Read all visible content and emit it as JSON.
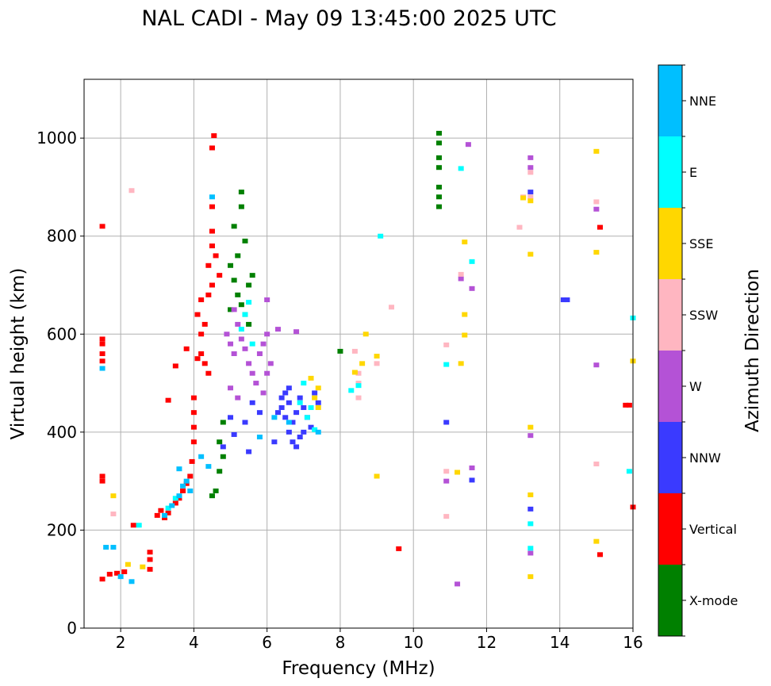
{
  "chart_data": {
    "type": "scatter",
    "title": "NAL CADI - May 09 13:45:00 2025 UTC",
    "xlabel": "Frequency (MHz)",
    "ylabel": "Virtual height (km)",
    "xlim": [
      1,
      16
    ],
    "ylim": [
      0,
      1120
    ],
    "xticks": [
      2,
      4,
      6,
      8,
      10,
      12,
      14,
      16
    ],
    "yticks": [
      0,
      200,
      400,
      600,
      800,
      1000
    ],
    "grid": true,
    "colorbar": {
      "label": "Azimuth Direction",
      "categories": [
        {
          "name": "X-mode",
          "color": "#008000"
        },
        {
          "name": "Vertical",
          "color": "#ff0000"
        },
        {
          "name": "NNW",
          "color": "#3a3aff"
        },
        {
          "name": "W",
          "color": "#b452d6"
        },
        {
          "name": "SSW",
          "color": "#ffb6c1"
        },
        {
          "name": "SSE",
          "color": "#ffd700"
        },
        {
          "name": "E",
          "color": "#00ffff"
        },
        {
          "name": "NNE",
          "color": "#00bfff"
        }
      ]
    },
    "series": [
      {
        "name": "X-mode",
        "color": "#008000",
        "points": [
          [
            10.7,
            1010
          ],
          [
            10.7,
            990
          ],
          [
            10.7,
            960
          ],
          [
            10.7,
            940
          ],
          [
            10.7,
            900
          ],
          [
            10.7,
            880
          ],
          [
            10.7,
            860
          ],
          [
            4.6,
            280
          ],
          [
            4.7,
            320
          ],
          [
            4.8,
            350
          ],
          [
            4.5,
            270
          ],
          [
            4.7,
            380
          ],
          [
            4.8,
            420
          ],
          [
            5.0,
            740
          ],
          [
            5.1,
            710
          ],
          [
            5.2,
            680
          ],
          [
            5.3,
            660
          ],
          [
            5.4,
            640
          ],
          [
            5.2,
            760
          ],
          [
            5.5,
            700
          ],
          [
            5.1,
            820
          ],
          [
            5.3,
            860
          ],
          [
            5.4,
            790
          ],
          [
            5.6,
            720
          ],
          [
            5.3,
            890
          ],
          [
            5.0,
            650
          ],
          [
            5.5,
            620
          ],
          [
            8.0,
            565
          ]
        ]
      },
      {
        "name": "Vertical",
        "color": "#ff0000",
        "points": [
          [
            1.5,
            590
          ],
          [
            1.5,
            580
          ],
          [
            1.5,
            560
          ],
          [
            1.5,
            545
          ],
          [
            1.5,
            310
          ],
          [
            1.5,
            300
          ],
          [
            1.5,
            820
          ],
          [
            1.5,
            100
          ],
          [
            1.7,
            110
          ],
          [
            1.9,
            112
          ],
          [
            2.1,
            115
          ],
          [
            2.8,
            120
          ],
          [
            2.8,
            140
          ],
          [
            2.8,
            155
          ],
          [
            2.35,
            210
          ],
          [
            3.0,
            230
          ],
          [
            3.1,
            240
          ],
          [
            3.2,
            225
          ],
          [
            3.3,
            235
          ],
          [
            3.5,
            255
          ],
          [
            3.6,
            265
          ],
          [
            3.7,
            280
          ],
          [
            3.8,
            295
          ],
          [
            3.9,
            310
          ],
          [
            3.95,
            340
          ],
          [
            4.0,
            380
          ],
          [
            4.0,
            410
          ],
          [
            4.0,
            440
          ],
          [
            4.0,
            470
          ],
          [
            3.5,
            535
          ],
          [
            3.8,
            570
          ],
          [
            4.1,
            550
          ],
          [
            4.2,
            560
          ],
          [
            4.3,
            540
          ],
          [
            4.4,
            520
          ],
          [
            4.2,
            600
          ],
          [
            4.3,
            620
          ],
          [
            4.1,
            640
          ],
          [
            4.2,
            670
          ],
          [
            4.4,
            680
          ],
          [
            4.5,
            700
          ],
          [
            4.4,
            740
          ],
          [
            4.5,
            780
          ],
          [
            4.5,
            810
          ],
          [
            4.5,
            860
          ],
          [
            4.5,
            980
          ],
          [
            4.55,
            1005
          ],
          [
            3.3,
            465
          ],
          [
            4.6,
            760
          ],
          [
            4.7,
            720
          ],
          [
            9.6,
            162
          ],
          [
            15.8,
            455
          ],
          [
            15.9,
            455
          ],
          [
            15.1,
            818
          ],
          [
            15.1,
            150
          ],
          [
            16.0,
            247
          ]
        ]
      },
      {
        "name": "NNW",
        "color": "#3a3aff",
        "points": [
          [
            6.3,
            440
          ],
          [
            6.4,
            450
          ],
          [
            6.5,
            430
          ],
          [
            6.6,
            460
          ],
          [
            6.7,
            420
          ],
          [
            6.8,
            440
          ],
          [
            6.9,
            470
          ],
          [
            7.0,
            450
          ],
          [
            7.1,
            430
          ],
          [
            7.2,
            410
          ],
          [
            6.6,
            400
          ],
          [
            6.7,
            380
          ],
          [
            6.8,
            370
          ],
          [
            6.9,
            390
          ],
          [
            7.0,
            400
          ],
          [
            6.5,
            480
          ],
          [
            6.6,
            490
          ],
          [
            6.4,
            470
          ],
          [
            7.3,
            480
          ],
          [
            7.4,
            460
          ],
          [
            6.2,
            380
          ],
          [
            5.6,
            460
          ],
          [
            5.8,
            440
          ],
          [
            5.4,
            420
          ],
          [
            5.0,
            430
          ],
          [
            5.1,
            395
          ],
          [
            4.8,
            370
          ],
          [
            5.5,
            360
          ],
          [
            14.1,
            670
          ],
          [
            14.2,
            670
          ],
          [
            13.2,
            243
          ],
          [
            13.2,
            890
          ],
          [
            10.9,
            420
          ],
          [
            11.6,
            302
          ]
        ]
      },
      {
        "name": "W",
        "color": "#b452d6",
        "points": [
          [
            4.9,
            600
          ],
          [
            5.0,
            580
          ],
          [
            5.1,
            560
          ],
          [
            5.2,
            620
          ],
          [
            5.3,
            590
          ],
          [
            5.4,
            570
          ],
          [
            5.5,
            540
          ],
          [
            5.6,
            520
          ],
          [
            5.8,
            560
          ],
          [
            5.9,
            580
          ],
          [
            6.0,
            600
          ],
          [
            6.1,
            540
          ],
          [
            6.0,
            520
          ],
          [
            5.7,
            500
          ],
          [
            5.9,
            480
          ],
          [
            5.2,
            470
          ],
          [
            5.0,
            490
          ],
          [
            6.0,
            670
          ],
          [
            6.3,
            610
          ],
          [
            6.8,
            605
          ],
          [
            5.1,
            650
          ],
          [
            13.2,
            960
          ],
          [
            13.2,
            940
          ],
          [
            13.2,
            393
          ],
          [
            13.2,
            153
          ],
          [
            15.0,
            855
          ],
          [
            15.0,
            537
          ],
          [
            11.5,
            987
          ],
          [
            11.6,
            693
          ],
          [
            11.6,
            327
          ],
          [
            10.9,
            300
          ],
          [
            11.2,
            90
          ],
          [
            11.3,
            713
          ]
        ]
      },
      {
        "name": "SSW",
        "color": "#ffb6c1",
        "points": [
          [
            2.3,
            893
          ],
          [
            1.8,
            233
          ],
          [
            8.5,
            520
          ],
          [
            8.5,
            500
          ],
          [
            8.5,
            470
          ],
          [
            8.4,
            565
          ],
          [
            9.0,
            540
          ],
          [
            9.4,
            655
          ],
          [
            10.9,
            578
          ],
          [
            10.9,
            320
          ],
          [
            10.9,
            228
          ],
          [
            11.3,
            722
          ],
          [
            12.9,
            818
          ],
          [
            13.2,
            930
          ],
          [
            13.2,
            880
          ],
          [
            15.0,
            870
          ],
          [
            15.0,
            335
          ],
          [
            13.0,
            880
          ]
        ]
      },
      {
        "name": "SSE",
        "color": "#ffd700",
        "points": [
          [
            1.8,
            270
          ],
          [
            2.2,
            130
          ],
          [
            2.6,
            125
          ],
          [
            7.3,
            470
          ],
          [
            7.4,
            450
          ],
          [
            7.4,
            490
          ],
          [
            7.2,
            510
          ],
          [
            8.4,
            522
          ],
          [
            8.6,
            540
          ],
          [
            8.7,
            600
          ],
          [
            9.0,
            555
          ],
          [
            9.0,
            310
          ],
          [
            11.2,
            318
          ],
          [
            11.3,
            540
          ],
          [
            11.4,
            598
          ],
          [
            11.4,
            640
          ],
          [
            11.4,
            788
          ],
          [
            13.0,
            878
          ],
          [
            13.2,
            872
          ],
          [
            13.2,
            763
          ],
          [
            13.2,
            410
          ],
          [
            13.2,
            272
          ],
          [
            13.2,
            105
          ],
          [
            15.0,
            973
          ],
          [
            15.0,
            767
          ],
          [
            15.0,
            177
          ],
          [
            16.0,
            545
          ]
        ]
      },
      {
        "name": "E",
        "color": "#00ffff",
        "points": [
          [
            2.5,
            210
          ],
          [
            3.3,
            245
          ],
          [
            3.5,
            265
          ],
          [
            5.4,
            640
          ],
          [
            5.5,
            665
          ],
          [
            5.3,
            610
          ],
          [
            5.6,
            580
          ],
          [
            7.1,
            430
          ],
          [
            7.2,
            450
          ],
          [
            7.3,
            405
          ],
          [
            7.0,
            500
          ],
          [
            6.9,
            460
          ],
          [
            8.3,
            485
          ],
          [
            8.5,
            495
          ],
          [
            9.1,
            800
          ],
          [
            10.9,
            538
          ],
          [
            11.3,
            938
          ],
          [
            11.6,
            748
          ],
          [
            13.2,
            213
          ],
          [
            13.2,
            163
          ],
          [
            16.0,
            633
          ],
          [
            15.9,
            320
          ]
        ]
      },
      {
        "name": "NNE",
        "color": "#00bfff",
        "points": [
          [
            1.5,
            530
          ],
          [
            1.6,
            165
          ],
          [
            1.8,
            165
          ],
          [
            2.3,
            95
          ],
          [
            2.0,
            105
          ],
          [
            3.2,
            230
          ],
          [
            3.4,
            250
          ],
          [
            3.6,
            270
          ],
          [
            3.7,
            290
          ],
          [
            3.8,
            300
          ],
          [
            3.6,
            325
          ],
          [
            3.9,
            280
          ],
          [
            4.2,
            350
          ],
          [
            4.4,
            330
          ],
          [
            4.5,
            880
          ],
          [
            5.8,
            390
          ],
          [
            6.2,
            430
          ],
          [
            6.6,
            420
          ],
          [
            7.4,
            400
          ]
        ]
      }
    ]
  }
}
